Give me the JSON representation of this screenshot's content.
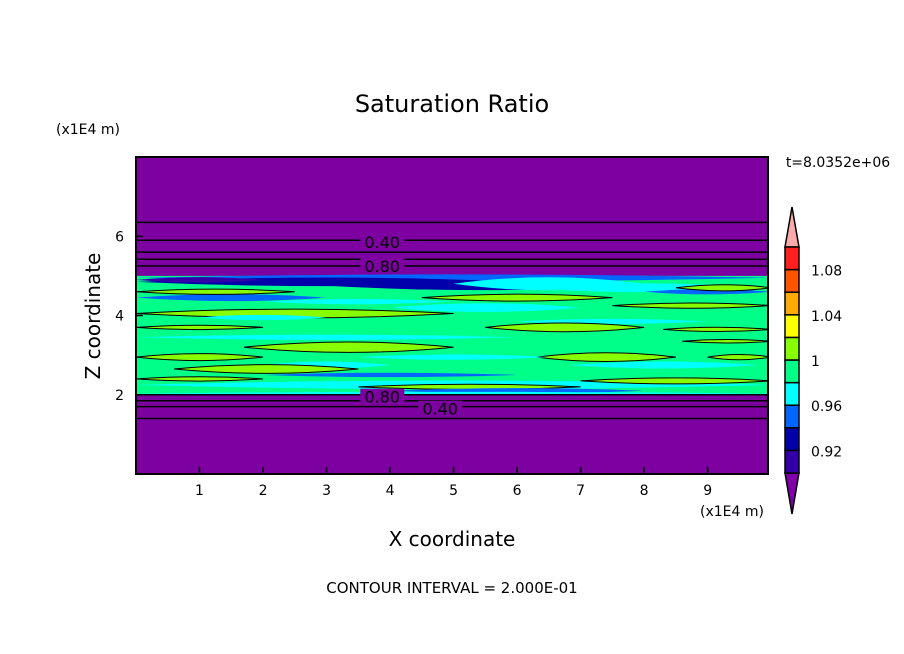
{
  "chart_data": {
    "type": "heatmap",
    "subtype": "filled-contour",
    "title": "Saturation Ratio",
    "xlabel": "X coordinate",
    "ylabel": "Z coordinate",
    "x_units": "(x1E4 m)",
    "y_units": "(x1E4 m)",
    "xlim": [
      0,
      9.95
    ],
    "ylim": [
      0,
      8
    ],
    "x_ticks": [
      "1",
      "2",
      "3",
      "4",
      "5",
      "6",
      "7",
      "8",
      "9"
    ],
    "y_ticks": [
      "2",
      "4",
      "6"
    ],
    "time_label": "t=8.0352e+06",
    "footer": "CONTOUR INTERVAL = 2.000E-01",
    "colorbar": {
      "levels": [
        0.9,
        0.92,
        0.94,
        0.96,
        0.98,
        1.0,
        1.02,
        1.04,
        1.06,
        1.08,
        1.1
      ],
      "tick_labels": [
        {
          "value": 1.08,
          "label": "1.08"
        },
        {
          "value": 1.04,
          "label": "1.04"
        },
        {
          "value": 1.0,
          "label": "1"
        },
        {
          "value": 0.96,
          "label": "0.96"
        },
        {
          "value": 0.92,
          "label": "0.92"
        }
      ],
      "colors": [
        "#3300a8",
        "#0000aa",
        "#0066ff",
        "#00ffff",
        "#00ff88",
        "#88ff00",
        "#ffff00",
        "#ffaa00",
        "#ff5500",
        "#ff2020"
      ],
      "under_color": "#7f00a8",
      "over_color": "#ffaaaa"
    },
    "contour_lines_z": [
      6.35,
      5.9,
      5.6,
      5.42,
      5.25,
      2.0,
      1.85,
      1.7,
      1.4
    ],
    "contour_labels": [
      {
        "label": "0.40",
        "x": 3.5,
        "z": 5.85
      },
      {
        "label": "0.80",
        "x": 3.5,
        "z": 5.25
      },
      {
        "label": "0.80",
        "x": 3.5,
        "z": 1.95
      },
      {
        "label": "0.40",
        "x": 3.5,
        "z": 1.65
      }
    ],
    "moist_layer_z": [
      2.0,
      5.0
    ],
    "background_value_color": "#7d00a0"
  }
}
